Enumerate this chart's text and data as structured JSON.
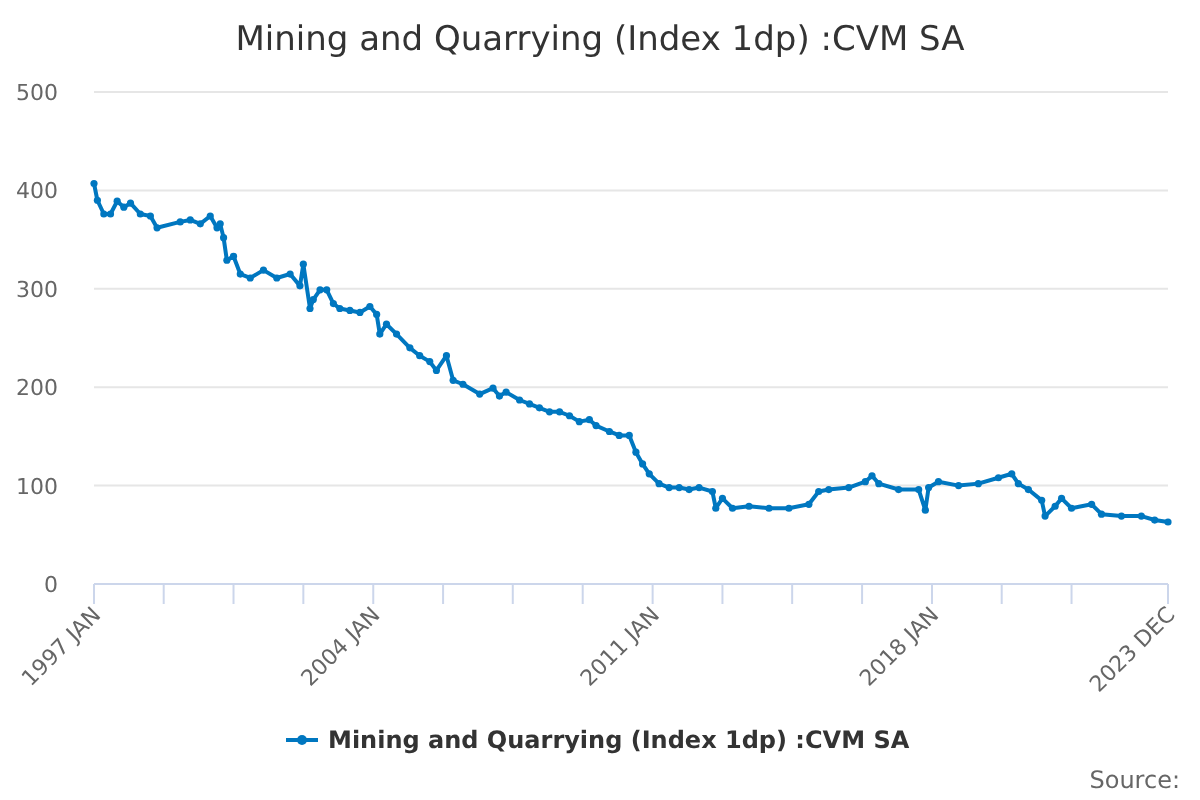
{
  "chart_data": {
    "type": "line",
    "title": "Mining and Quarrying (Index 1dp) :CVM SA",
    "annotations": [
      "Source:"
    ],
    "x": [
      "1997-01",
      "1997-02",
      "1997-04",
      "1997-06",
      "1997-08",
      "1997-10",
      "1997-12",
      "1998-03",
      "1998-06",
      "1998-08",
      "1999-03",
      "1999-06",
      "1999-09",
      "1999-12",
      "2000-02",
      "2000-03",
      "2000-04",
      "2000-05",
      "2000-07",
      "2000-09",
      "2000-12",
      "2001-04",
      "2001-08",
      "2001-12",
      "2002-03",
      "2002-04",
      "2002-06",
      "2002-07",
      "2002-09",
      "2002-11",
      "2003-01",
      "2003-03",
      "2003-06",
      "2003-09",
      "2003-12",
      "2004-02",
      "2004-03",
      "2004-05",
      "2004-08",
      "2004-12",
      "2005-03",
      "2005-06",
      "2005-08",
      "2005-11",
      "2006-01",
      "2006-04",
      "2006-09",
      "2007-01",
      "2007-03",
      "2007-05",
      "2007-09",
      "2007-12",
      "2008-03",
      "2008-06",
      "2008-09",
      "2008-12",
      "2009-03",
      "2009-06",
      "2009-08",
      "2009-12",
      "2010-03",
      "2010-06",
      "2010-08",
      "2010-10",
      "2010-12",
      "2011-03",
      "2011-06",
      "2011-09",
      "2011-12",
      "2012-03",
      "2012-07",
      "2012-08",
      "2012-10",
      "2013-01",
      "2013-06",
      "2013-12",
      "2014-06",
      "2014-12",
      "2015-03",
      "2015-06",
      "2015-12",
      "2016-05",
      "2016-07",
      "2016-09",
      "2017-03",
      "2017-09",
      "2017-11",
      "2017-12",
      "2018-03",
      "2018-09",
      "2019-03",
      "2019-09",
      "2020-01",
      "2020-03",
      "2020-06",
      "2020-10",
      "2020-11",
      "2021-02",
      "2021-04",
      "2021-07",
      "2022-01",
      "2022-04",
      "2022-10",
      "2023-04",
      "2023-08",
      "2023-12"
    ],
    "series": [
      {
        "name": "Mining and Quarrying (Index 1dp) :CVM SA",
        "color": "#0077c0",
        "values": [
          407,
          390,
          376,
          376,
          389,
          383,
          387,
          376,
          374,
          362,
          368,
          370,
          366,
          374,
          362,
          366,
          352,
          329,
          333,
          315,
          311,
          319,
          311,
          315,
          303,
          325,
          280,
          289,
          299,
          299,
          285,
          280,
          278,
          276,
          282,
          274,
          254,
          264,
          254,
          240,
          232,
          226,
          217,
          232,
          207,
          203,
          193,
          199,
          191,
          195,
          187,
          183,
          179,
          175,
          175,
          171,
          165,
          167,
          161,
          155,
          151,
          151,
          134,
          122,
          112,
          102,
          98,
          98,
          96,
          98,
          94,
          77,
          87,
          77,
          79,
          77,
          77,
          81,
          94,
          96,
          98,
          104,
          110,
          102,
          96,
          96,
          75,
          98,
          104,
          100,
          102,
          108,
          112,
          102,
          96,
          85,
          69,
          79,
          87,
          77,
          81,
          71,
          69,
          69,
          65,
          63
        ]
      }
    ],
    "xlim": [
      "1997-01",
      "2023-12"
    ],
    "xticks": [
      {
        "value": "1997-01",
        "label": "1997 JAN"
      },
      {
        "value": "1998-10",
        "label": null
      },
      {
        "value": "2000-07",
        "label": null
      },
      {
        "value": "2002-04",
        "label": null
      },
      {
        "value": "2004-01",
        "label": "2004 JAN"
      },
      {
        "value": "2005-10",
        "label": null
      },
      {
        "value": "2007-07",
        "label": null
      },
      {
        "value": "2009-04",
        "label": null
      },
      {
        "value": "2011-01",
        "label": "2011 JAN"
      },
      {
        "value": "2012-10",
        "label": null
      },
      {
        "value": "2014-07",
        "label": null
      },
      {
        "value": "2016-04",
        "label": null
      },
      {
        "value": "2018-01",
        "label": "2018 JAN"
      },
      {
        "value": "2019-10",
        "label": null
      },
      {
        "value": "2021-07",
        "label": null
      },
      {
        "value": "2023-12",
        "label": "2023 DEC"
      }
    ],
    "ylim": [
      0,
      500
    ],
    "yticks": [
      0,
      100,
      200,
      300,
      400,
      500
    ],
    "grid": "y",
    "legend": "bottom",
    "marker": "circle",
    "line_style": "solid"
  }
}
